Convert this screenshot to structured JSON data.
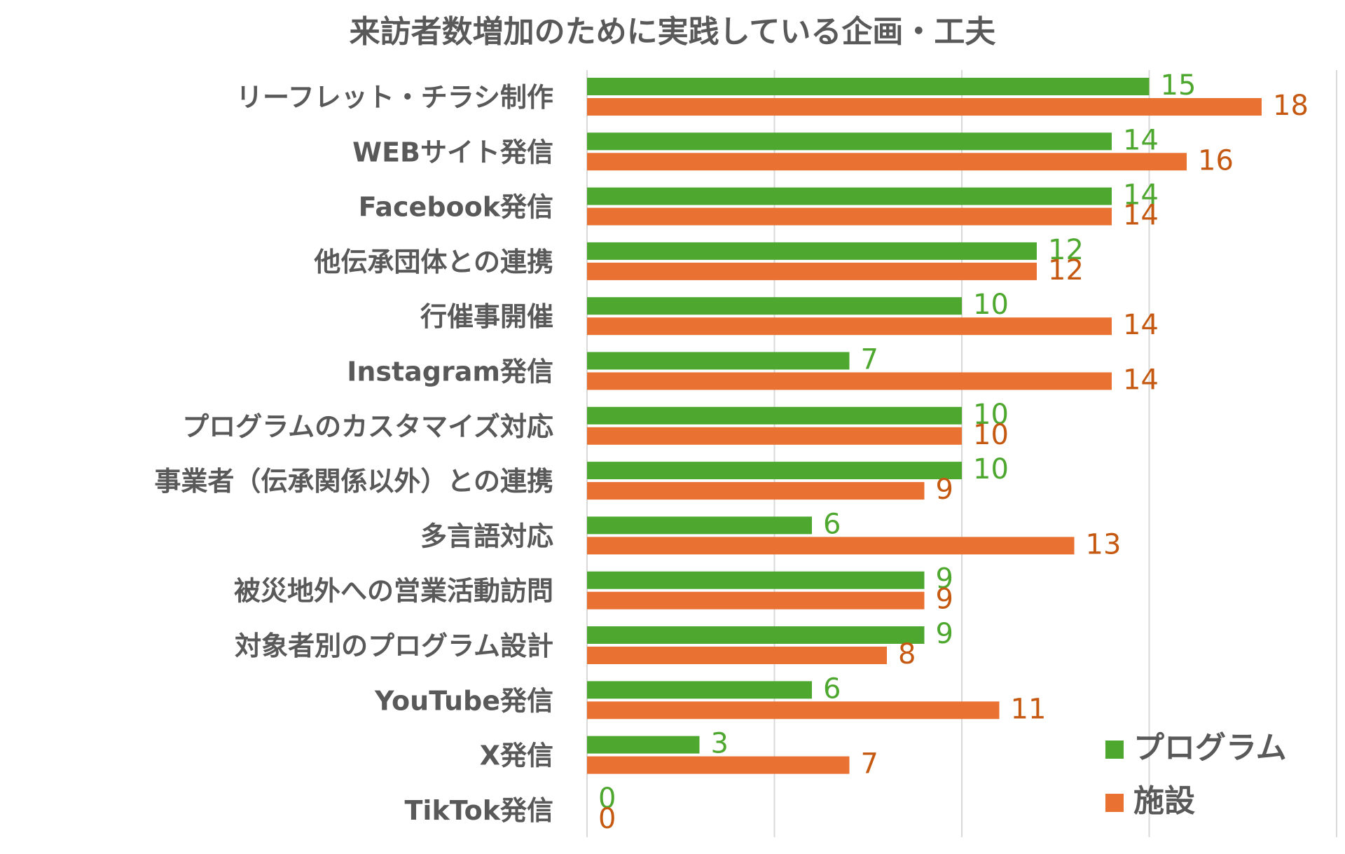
{
  "colors": {
    "program": "#4EA72E",
    "facility": "#E97132",
    "program_label": "#4EA72E",
    "facility_label": "#C65911",
    "text": "#595959",
    "grid": "#D9D9D9"
  },
  "chart_data": {
    "type": "bar",
    "orientation": "horizontal",
    "title": "来訪者数増加のために実践している企画・工夫",
    "categories": [
      "リーフレット・チラシ制作",
      "WEBサイト発信",
      "Facebook発信",
      "他伝承団体との連携",
      "行催事開催",
      "Instagram発信",
      "プログラムのカスタマイズ対応",
      "事業者（伝承関係以外）との連携",
      "多言語対応",
      "被災地外への営業活動訪問",
      "対象者別のプログラム設計",
      "YouTube発信",
      "X発信",
      "TikTok発信"
    ],
    "series": [
      {
        "name": "プログラム",
        "values": [
          15,
          14,
          14,
          12,
          10,
          7,
          10,
          10,
          6,
          9,
          9,
          6,
          3,
          0
        ]
      },
      {
        "name": "施設",
        "values": [
          18,
          16,
          14,
          12,
          14,
          14,
          10,
          9,
          13,
          9,
          8,
          11,
          7,
          0
        ]
      }
    ],
    "xlim": [
      0,
      20
    ],
    "xticks": [
      0,
      5,
      10,
      15,
      20
    ],
    "grid": true,
    "data_labels": true,
    "legend_position": "bottom-right"
  }
}
